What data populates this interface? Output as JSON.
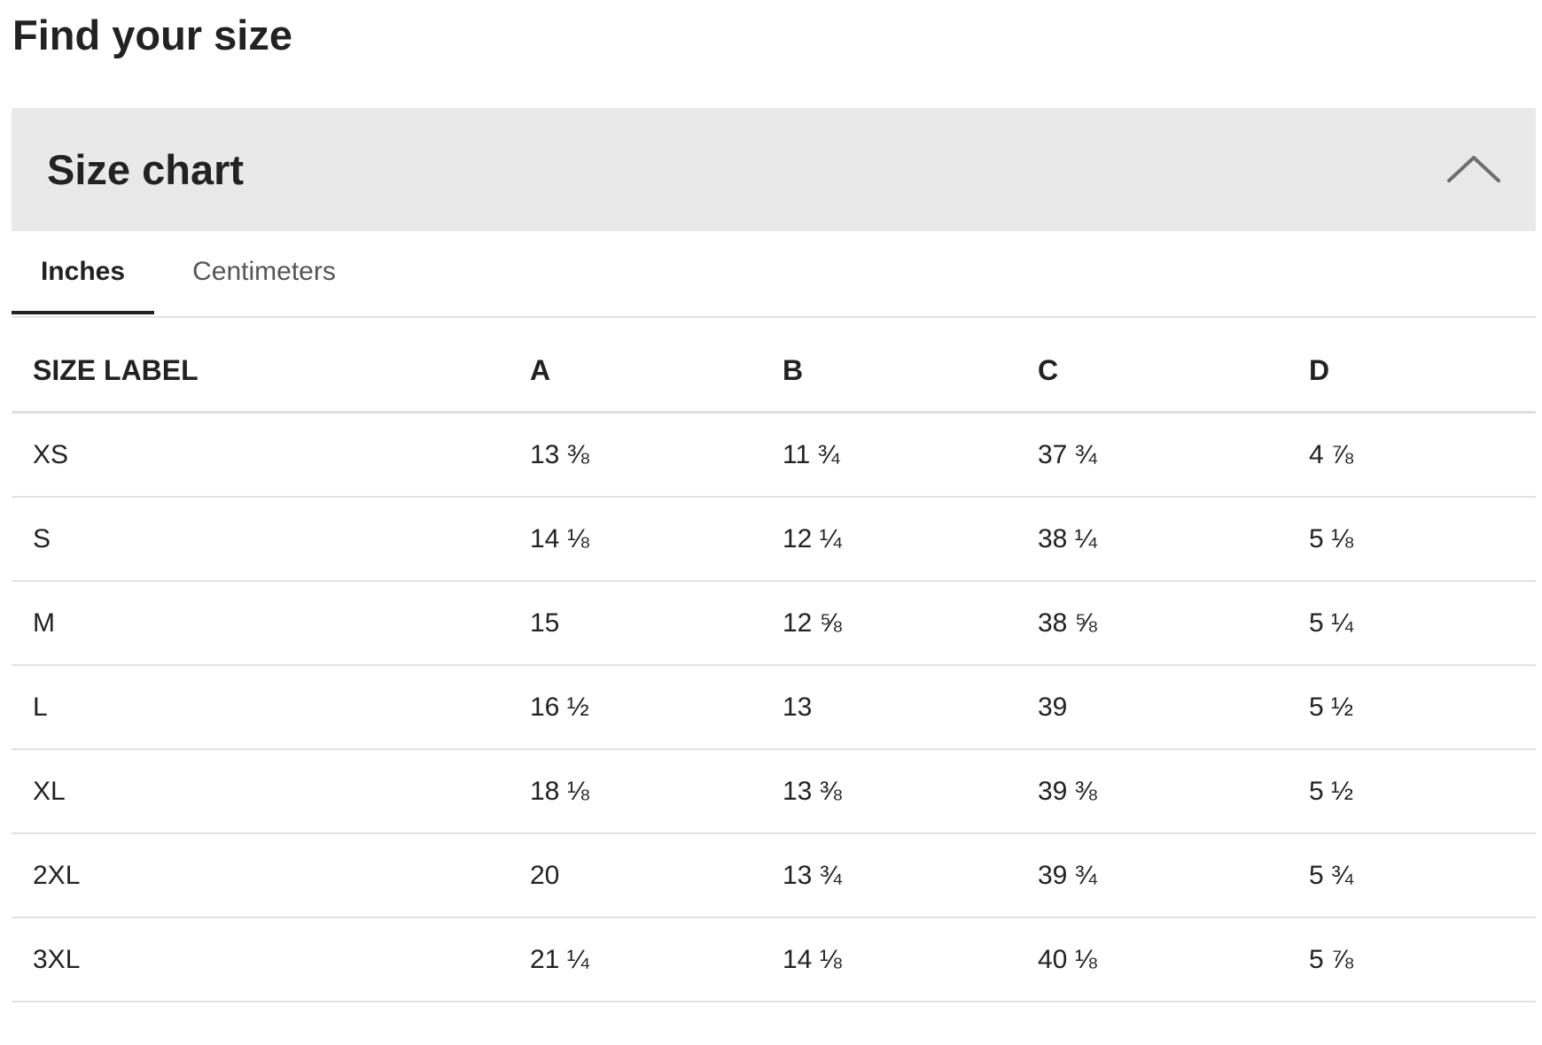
{
  "page": {
    "title": "Find your size"
  },
  "accordion": {
    "title": "Size chart",
    "icon": "chevron-up-icon",
    "expanded": true
  },
  "tabs": [
    {
      "label": "Inches",
      "active": true
    },
    {
      "label": "Centimeters",
      "active": false
    }
  ],
  "table": {
    "headers": [
      "SIZE LABEL",
      "A",
      "B",
      "C",
      "D"
    ],
    "rows": [
      [
        "XS",
        "13 ⅜",
        "11 ¾",
        "37 ¾",
        "4 ⅞"
      ],
      [
        "S",
        "14 ⅛",
        "12 ¼",
        "38 ¼",
        "5 ⅛"
      ],
      [
        "M",
        "15",
        "12 ⅝",
        "38 ⅝",
        "5 ¼"
      ],
      [
        "L",
        "16 ½",
        "13",
        "39",
        "5 ½"
      ],
      [
        "XL",
        "18 ⅛",
        "13 ⅜",
        "39 ⅜",
        "5 ½"
      ],
      [
        "2XL",
        "20",
        "13 ¾",
        "39 ¾",
        "5 ¾"
      ],
      [
        "3XL",
        "21 ¼",
        "14 ⅛",
        "40 ⅛",
        "5 ⅞"
      ]
    ]
  },
  "colors": {
    "text": "#222222",
    "header_bg": "#e9e9e9",
    "divider": "#e2e2e2",
    "tab_inactive": "#555555"
  }
}
